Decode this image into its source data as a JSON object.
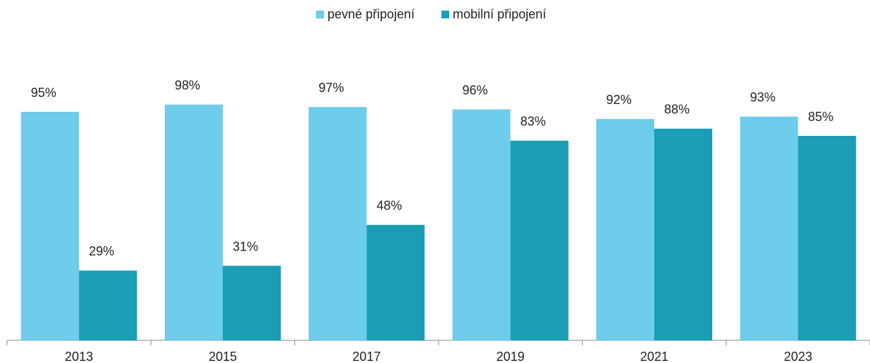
{
  "chart_data": {
    "type": "bar",
    "categories": [
      "2013",
      "2015",
      "2017",
      "2019",
      "2021",
      "2023"
    ],
    "series": [
      {
        "name": "pevné připojení",
        "color": "#6dcdea",
        "values": [
          95,
          98,
          97,
          96,
          92,
          93
        ],
        "value_labels": [
          "95%",
          "98%",
          "97%",
          "96%",
          "92%",
          "93%"
        ]
      },
      {
        "name": "mobilní připojení",
        "color": "#1b9db5",
        "values": [
          29,
          31,
          48,
          83,
          88,
          85
        ],
        "value_labels": [
          "29%",
          "31%",
          "48%",
          "83%",
          "88%",
          "85%"
        ]
      }
    ],
    "ylim": [
      0,
      100
    ],
    "legend": "top"
  }
}
